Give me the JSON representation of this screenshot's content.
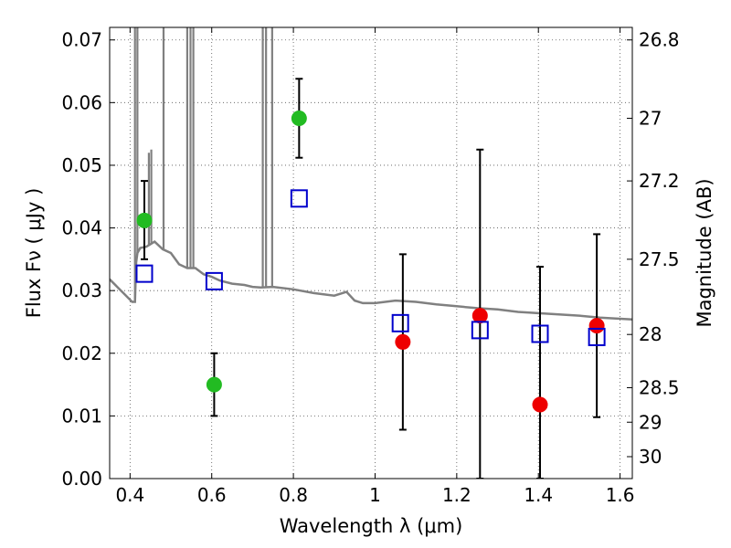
{
  "chart_data": {
    "type": "scatter",
    "title": "",
    "xlabel": "Wavelength  λ (μm)",
    "ylabel": "Flux  Fν  ( μJy )",
    "y2label": "Magnitude (AB)",
    "xlim": [
      0.35,
      1.63
    ],
    "ylim": [
      0.0,
      0.072
    ],
    "grid": true,
    "x_ticks": [
      0.4,
      0.6,
      0.8,
      1.0,
      1.2,
      1.4,
      1.6
    ],
    "x_tick_labels": [
      "0.4",
      "0.6",
      "0.8",
      "1",
      "1.2",
      "1.4",
      "1.6"
    ],
    "y_ticks": [
      0.0,
      0.01,
      0.02,
      0.03,
      0.04,
      0.05,
      0.06,
      0.07
    ],
    "y_tick_labels": [
      "0.00",
      "0.01",
      "0.02",
      "0.03",
      "0.04",
      "0.05",
      "0.06",
      "0.07"
    ],
    "y2_ticks": [
      {
        "flux": 0.07,
        "label": "26.8"
      },
      {
        "flux": 0.0575,
        "label": "27"
      },
      {
        "flux": 0.0475,
        "label": "27.2"
      },
      {
        "flux": 0.035,
        "label": "27.5"
      },
      {
        "flux": 0.023,
        "label": "28"
      },
      {
        "flux": 0.0145,
        "label": "28.5"
      },
      {
        "flux": 0.009,
        "label": "29"
      },
      {
        "flux": 0.0035,
        "label": "30"
      }
    ],
    "series": [
      {
        "marker": "circle",
        "color": "#22bb22",
        "points": [
          {
            "x": 0.435,
            "y": 0.0412,
            "yerr_low": 0.0062,
            "yerr_high": 0.0063
          },
          {
            "x": 0.606,
            "y": 0.015,
            "yerr_low": 0.005,
            "yerr_high": 0.005
          },
          {
            "x": 0.814,
            "y": 0.0575,
            "yerr_low": 0.0063,
            "yerr_high": 0.0063
          }
        ]
      },
      {
        "marker": "circle",
        "color": "#ee0000",
        "points": [
          {
            "x": 1.068,
            "y": 0.0218,
            "yerr_low": 0.014,
            "yerr_high": 0.014
          },
          {
            "x": 1.257,
            "y": 0.026,
            "yerr_low": 0.026,
            "yerr_high": 0.0265
          },
          {
            "x": 1.404,
            "y": 0.0118,
            "yerr_low": 0.0118,
            "yerr_high": 0.022
          },
          {
            "x": 1.543,
            "y": 0.0244,
            "yerr_low": 0.0146,
            "yerr_high": 0.0146
          }
        ]
      },
      {
        "marker": "square",
        "color": "#0000cc",
        "points": [
          {
            "x": 0.435,
            "y": 0.0327
          },
          {
            "x": 0.606,
            "y": 0.0315
          },
          {
            "x": 0.814,
            "y": 0.0447
          },
          {
            "x": 1.062,
            "y": 0.0248
          },
          {
            "x": 1.257,
            "y": 0.0237
          },
          {
            "x": 1.404,
            "y": 0.0231
          },
          {
            "x": 1.543,
            "y": 0.0226
          }
        ]
      },
      {
        "type": "line",
        "color": "#808080",
        "x": [
          0.35,
          0.37,
          0.39,
          0.405,
          0.412,
          0.415,
          0.418,
          0.425,
          0.44,
          0.46,
          0.48,
          0.5,
          0.52,
          0.54,
          0.56,
          0.58,
          0.6,
          0.62,
          0.65,
          0.68,
          0.7,
          0.72,
          0.75,
          0.8,
          0.85,
          0.9,
          0.93,
          0.95,
          0.97,
          1.0,
          1.05,
          1.1,
          1.15,
          1.2,
          1.25,
          1.3,
          1.35,
          1.4,
          1.45,
          1.5,
          1.55,
          1.6,
          1.63
        ],
        "y": [
          0.0318,
          0.0305,
          0.0292,
          0.0282,
          0.0282,
          0.0345,
          0.036,
          0.0368,
          0.037,
          0.0378,
          0.0366,
          0.036,
          0.0342,
          0.0336,
          0.0336,
          0.0326,
          0.0322,
          0.0316,
          0.0311,
          0.0309,
          0.0306,
          0.0305,
          0.0306,
          0.0302,
          0.0296,
          0.0292,
          0.0298,
          0.0284,
          0.028,
          0.028,
          0.0284,
          0.0282,
          0.0278,
          0.0275,
          0.0272,
          0.027,
          0.0266,
          0.0264,
          0.0262,
          0.026,
          0.0257,
          0.0255,
          0.0254
        ],
        "spikes": [
          {
            "x": 0.412,
            "top": 0.072
          },
          {
            "x": 0.418,
            "top": 0.072
          },
          {
            "x": 0.446,
            "top": 0.052
          },
          {
            "x": 0.452,
            "top": 0.0525
          },
          {
            "x": 0.482,
            "top": 0.072
          },
          {
            "x": 0.54,
            "top": 0.072
          },
          {
            "x": 0.548,
            "top": 0.072
          },
          {
            "x": 0.555,
            "top": 0.072
          },
          {
            "x": 0.725,
            "top": 0.072
          },
          {
            "x": 0.733,
            "top": 0.072
          },
          {
            "x": 0.748,
            "top": 0.072
          }
        ]
      }
    ]
  }
}
